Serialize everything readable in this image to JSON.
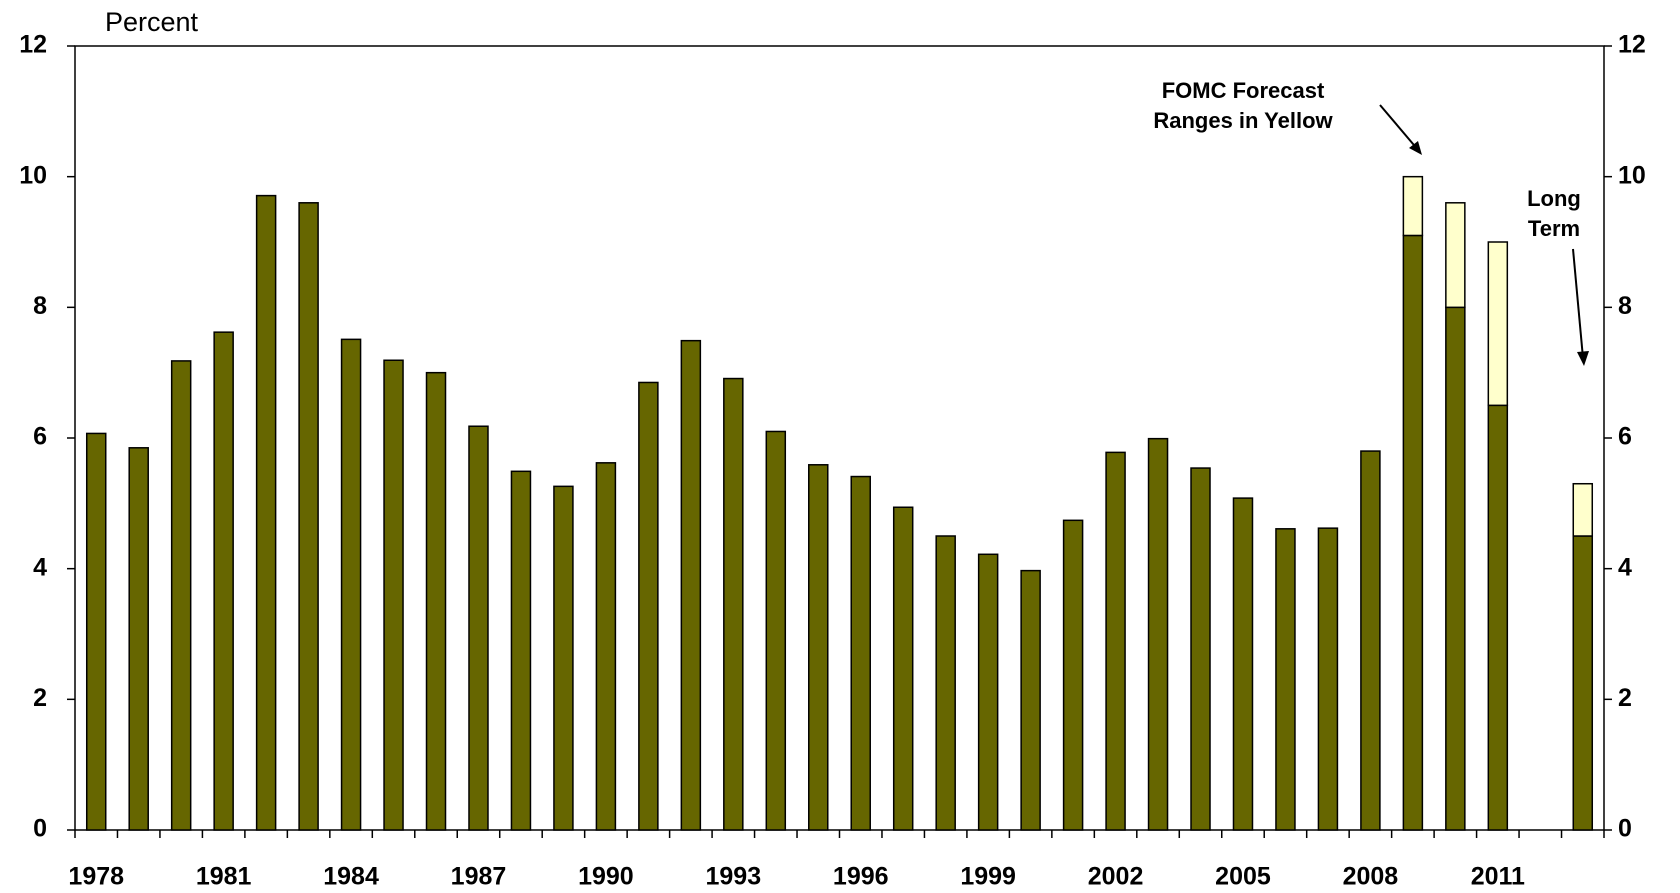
{
  "chart_data": {
    "type": "bar",
    "ylabel": "Percent",
    "annotations": [
      [
        "FOMC Forecast",
        "Ranges in Yellow"
      ],
      [
        "Long",
        "Term"
      ]
    ],
    "categories": [
      1978,
      null,
      null,
      1981,
      null,
      null,
      1984,
      null,
      null,
      1987,
      null,
      null,
      1990,
      null,
      null,
      1993,
      null,
      null,
      1996,
      null,
      null,
      1999,
      null,
      null,
      2002,
      null,
      null,
      2005,
      null,
      null,
      2008,
      null,
      null,
      2011,
      null,
      null
    ],
    "series": [
      {
        "color": "#666600",
        "values": [
          6.07,
          5.85,
          7.18,
          7.62,
          9.71,
          9.6,
          7.51,
          7.19,
          7.0,
          6.18,
          5.49,
          5.26,
          5.62,
          6.85,
          7.49,
          6.91,
          6.1,
          5.59,
          5.41,
          4.94,
          4.5,
          4.22,
          3.97,
          4.74,
          5.78,
          5.99,
          5.54,
          5.08,
          4.61,
          4.62,
          5.8,
          9.1,
          8.0,
          6.5,
          null,
          4.5
        ]
      },
      {
        "color": "#ffffcc",
        "values": [
          null,
          null,
          null,
          null,
          null,
          null,
          null,
          null,
          null,
          null,
          null,
          null,
          null,
          null,
          null,
          null,
          null,
          null,
          null,
          null,
          null,
          null,
          null,
          null,
          null,
          null,
          null,
          null,
          null,
          null,
          null,
          0.9,
          1.6,
          2.5,
          null,
          0.8
        ]
      }
    ],
    "ylim": [
      0,
      12
    ],
    "yticks": [
      0,
      2,
      4,
      6,
      8,
      10,
      12
    ],
    "y2lim": [
      0,
      12
    ],
    "y2ticks": [
      0,
      2,
      4,
      6,
      8,
      10,
      12
    ]
  }
}
